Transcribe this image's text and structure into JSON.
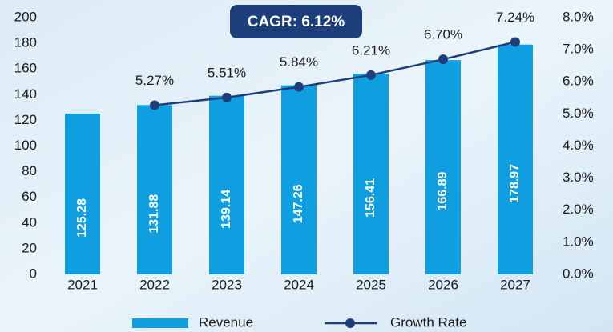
{
  "chart_data": {
    "type": "bar_line",
    "annotation": "CAGR: 6.12%",
    "categories": [
      "2021",
      "2022",
      "2023",
      "2024",
      "2025",
      "2026",
      "2027"
    ],
    "series": [
      {
        "name": "Revenue",
        "type": "bar",
        "color": "#0f9fe0",
        "values": [
          125.28,
          131.88,
          139.14,
          147.26,
          156.41,
          166.89,
          178.97
        ]
      },
      {
        "name": "Growth Rate",
        "type": "line",
        "axis": "y2",
        "color": "#1c3f7c",
        "values": [
          null,
          5.27,
          5.51,
          5.84,
          6.21,
          6.7,
          7.24
        ],
        "value_labels": [
          null,
          "5.27%",
          "5.51%",
          "5.84%",
          "6.21%",
          "6.70%",
          "7.24%"
        ]
      }
    ],
    "ylim": [
      0,
      200
    ],
    "yticks": [
      0,
      20,
      40,
      60,
      80,
      100,
      120,
      140,
      160,
      180,
      200
    ],
    "y2lim": [
      0,
      8
    ],
    "y2ticks": [
      {
        "value": 0,
        "label": "0.0%"
      },
      {
        "value": 1,
        "label": "1.0%"
      },
      {
        "value": 2,
        "label": "2.0%"
      },
      {
        "value": 3,
        "label": "3.0%"
      },
      {
        "value": 4,
        "label": "4.0%"
      },
      {
        "value": 5,
        "label": "5.0%"
      },
      {
        "value": 6,
        "label": "6.0%"
      },
      {
        "value": 7,
        "label": "7.0%"
      },
      {
        "value": 8,
        "label": "8.0%"
      }
    ],
    "grid": false,
    "legend": "bottom"
  }
}
